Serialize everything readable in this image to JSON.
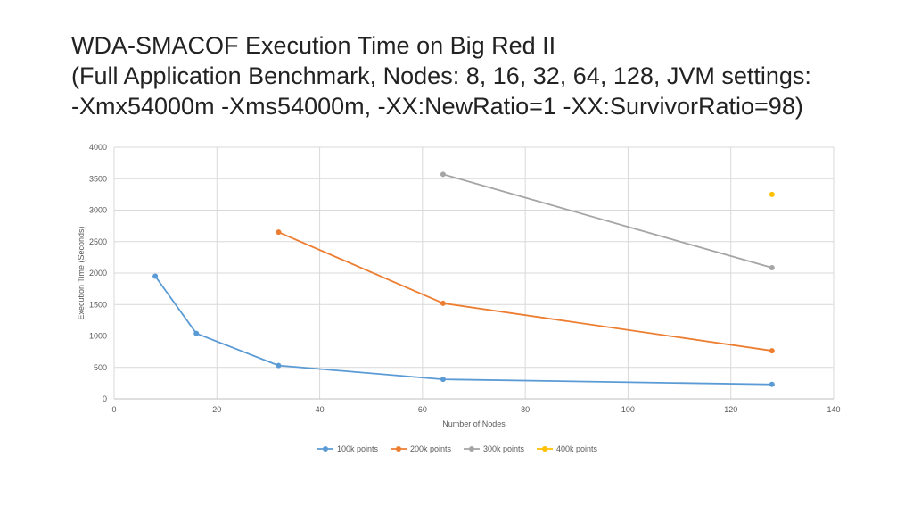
{
  "title": {
    "line1": "WDA-SMACOF Execution Time on Big Red II",
    "line2": "(Full Application Benchmark, Nodes: 8, 16, 32, 64, 128, JVM settings:",
    "line3": "-Xmx54000m -Xms54000m, -XX:NewRatio=1 -XX:SurvivorRatio=98)"
  },
  "chart_data": {
    "type": "scatter",
    "title": "",
    "xlabel": "Number of Nodes",
    "ylabel": "Execution Time (Seconds)",
    "xlim": [
      0,
      140
    ],
    "ylim": [
      0,
      4000
    ],
    "xticks": [
      0,
      20,
      40,
      60,
      80,
      100,
      120,
      140
    ],
    "yticks": [
      0,
      500,
      1000,
      1500,
      2000,
      2500,
      3000,
      3500,
      4000
    ],
    "grid": true,
    "legend_position": "bottom",
    "series": [
      {
        "name": "100k points",
        "color": "#5B9BD5",
        "x": [
          8,
          16,
          32,
          64,
          128
        ],
        "y": [
          1950,
          1040,
          530,
          310,
          230
        ]
      },
      {
        "name": "200k points",
        "color": "#ED7D31",
        "x": [
          32,
          64,
          128
        ],
        "y": [
          2650,
          1520,
          765
        ]
      },
      {
        "name": "300k points",
        "color": "#A5A5A5",
        "x": [
          64,
          128
        ],
        "y": [
          3570,
          2085
        ]
      },
      {
        "name": "400k points",
        "color": "#FFC000",
        "x": [
          128
        ],
        "y": [
          3250
        ]
      }
    ]
  }
}
